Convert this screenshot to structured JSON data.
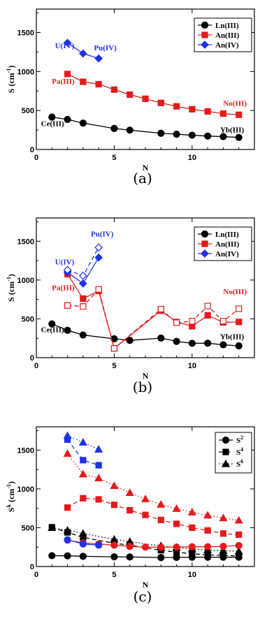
{
  "chart_data": [
    {
      "type": "line",
      "panel_label": "(a)",
      "xlabel": "N",
      "ylabel": "S (cm",
      "ylabel_sup": "-1",
      "ylabel_close": ")",
      "xlim": [
        0,
        14
      ],
      "ylim": [
        0,
        1800
      ],
      "xticks": [
        0,
        5,
        10
      ],
      "yticks": [
        0,
        500,
        1000,
        1500
      ],
      "legend_position": "top-right",
      "series": [
        {
          "name": "Ln(III)",
          "color": "#000000",
          "marker": "circle",
          "filled": true,
          "dash": "solid",
          "x": [
            1,
            2,
            3,
            5,
            6,
            8,
            9,
            10,
            11,
            12,
            13
          ],
          "y": [
            415,
            385,
            338,
            270,
            248,
            208,
            196,
            183,
            172,
            165,
            155
          ]
        },
        {
          "name": "An(III)",
          "color": "#e41a1c",
          "marker": "square",
          "filled": true,
          "dash": "solid",
          "x": [
            2,
            3,
            4,
            5,
            6,
            7,
            8,
            9,
            10,
            11,
            12,
            13
          ],
          "y": [
            968,
            868,
            837,
            768,
            703,
            650,
            597,
            553,
            516,
            488,
            460,
            445
          ]
        },
        {
          "name": "An(IV)",
          "color": "#1f32e6",
          "marker": "diamond",
          "filled": true,
          "dash": "solid",
          "x": [
            2,
            3,
            4
          ],
          "y": [
            1368,
            1230,
            1167
          ]
        }
      ],
      "annotations": [
        {
          "text": "U(IV)",
          "color": "#1f32e6",
          "x": 1.2,
          "y": 1300
        },
        {
          "text": "Pu(IV)",
          "color": "#1f32e6",
          "x": 3.7,
          "y": 1270
        },
        {
          "text": "Pa(III)",
          "color": "#e41a1c",
          "x": 1.0,
          "y": 840
        },
        {
          "text": "Ce(III)",
          "color": "#000000",
          "x": 0.3,
          "y": 300
        },
        {
          "text": "No(III)",
          "color": "#e41a1c",
          "x": 12.0,
          "y": 560
        },
        {
          "text": "Yb(III)",
          "color": "#000000",
          "x": 11.8,
          "y": 220
        }
      ]
    },
    {
      "type": "line",
      "panel_label": "(b)",
      "xlabel": "N",
      "ylabel": "S (cm",
      "ylabel_sup": "-1",
      "ylabel_close": ")",
      "xlim": [
        0,
        14
      ],
      "ylim": [
        0,
        1800
      ],
      "xticks": [
        0,
        5,
        10
      ],
      "yticks": [
        0,
        500,
        1000,
        1500
      ],
      "legend_position": "top-right",
      "series": [
        {
          "name": "Ln(III)",
          "color": "#000000",
          "marker": "circle",
          "filled": true,
          "dash": "solid",
          "x": [
            1,
            2,
            3,
            5,
            6,
            8,
            9,
            10,
            11,
            12,
            13
          ],
          "y": [
            435,
            352,
            292,
            243,
            222,
            252,
            210,
            185,
            186,
            166,
            152
          ]
        },
        {
          "name": "An(III)",
          "color": "#e41a1c",
          "marker": "square",
          "filled": true,
          "dash": "solid",
          "x": [
            2,
            3,
            4,
            5,
            8,
            9,
            10,
            11,
            12,
            13
          ],
          "y": [
            1075,
            760,
            860,
            120,
            605,
            460,
            405,
            545,
            455,
            460
          ]
        },
        {
          "name": "",
          "color": "#e41a1c",
          "marker": "square",
          "filled": false,
          "dash": "dashed",
          "x": [
            2,
            3,
            4,
            5,
            8,
            9,
            10,
            11,
            12,
            13
          ],
          "y": [
            672,
            660,
            880,
            120,
            625,
            450,
            470,
            665,
            470,
            630
          ]
        },
        {
          "name": "An(IV)",
          "color": "#1f32e6",
          "marker": "diamond",
          "filled": true,
          "dash": "solid",
          "x": [
            2,
            3,
            4
          ],
          "y": [
            1100,
            955,
            1290
          ]
        },
        {
          "name": "",
          "color": "#1f32e6",
          "marker": "diamond",
          "filled": false,
          "dash": "dashed",
          "x": [
            2,
            3,
            4
          ],
          "y": [
            1130,
            1055,
            1420
          ]
        }
      ],
      "annotations": [
        {
          "text": "Pu(IV)",
          "color": "#1f32e6",
          "x": 3.5,
          "y": 1560
        },
        {
          "text": "U(IV)",
          "color": "#1f32e6",
          "x": 1.2,
          "y": 1200
        },
        {
          "text": "Pa(III)",
          "color": "#e41a1c",
          "x": 1.0,
          "y": 870
        },
        {
          "text": "Ce(III)",
          "color": "#000000",
          "x": 0.3,
          "y": 330
        },
        {
          "text": "No(III)",
          "color": "#e41a1c",
          "x": 12.0,
          "y": 820
        },
        {
          "text": "Yb(III)",
          "color": "#000000",
          "x": 11.8,
          "y": 240
        }
      ]
    },
    {
      "type": "line",
      "panel_label": "(c)",
      "xlabel": "N",
      "ylabel": "S",
      "ylabel_sup": "k",
      "ylabel_rest": " (cm",
      "ylabel_sup2": "-1",
      "ylabel_close": ")",
      "xlim": [
        0,
        14
      ],
      "ylim": [
        0,
        1800
      ],
      "xticks": [
        0,
        5,
        10
      ],
      "yticks": [
        0,
        500,
        1000,
        1500
      ],
      "legend_position": "top-right",
      "legend": [
        {
          "label": "S",
          "sup": "2",
          "marker": "circle",
          "dash": "solid"
        },
        {
          "label": "S",
          "sup": "4",
          "marker": "square",
          "dash": "dashed"
        },
        {
          "label": "S",
          "sup": "6",
          "marker": "triangle",
          "dash": "dotted"
        }
      ],
      "series": [
        {
          "name": "",
          "color": "#000000",
          "marker": "circle",
          "filled": true,
          "dash": "solid",
          "x": [
            1,
            2,
            3,
            5,
            6,
            8,
            9,
            10,
            11,
            12,
            13
          ],
          "y": [
            140,
            138,
            132,
            125,
            123,
            116,
            118,
            120,
            120,
            120,
            120
          ]
        },
        {
          "name": "",
          "color": "#000000",
          "marker": "square",
          "filled": true,
          "dash": "dashed",
          "x": [
            1,
            2,
            3,
            5,
            6,
            8,
            9,
            10,
            11,
            12,
            13
          ],
          "y": [
            505,
            440,
            375,
            300,
            275,
            210,
            185,
            165,
            150,
            145,
            135
          ]
        },
        {
          "name": "",
          "color": "#000000",
          "marker": "triangle",
          "filled": true,
          "dash": "dotted",
          "x": [
            1,
            2,
            3,
            5,
            6,
            8,
            9,
            10,
            11,
            12,
            13
          ],
          "y": [
            500,
            465,
            425,
            350,
            320,
            265,
            245,
            225,
            215,
            205,
            195
          ]
        },
        {
          "name": "",
          "color": "#e41a1c",
          "marker": "circle",
          "filled": true,
          "dash": "solid",
          "x": [
            2,
            3,
            4,
            5,
            6,
            7,
            8,
            9,
            10,
            11,
            12,
            13
          ],
          "y": [
            340,
            305,
            290,
            275,
            260,
            250,
            250,
            250,
            255,
            255,
            260,
            270
          ]
        },
        {
          "name": "",
          "color": "#e41a1c",
          "marker": "square",
          "filled": true,
          "dash": "dashed",
          "x": [
            2,
            3,
            4,
            5,
            6,
            7,
            8,
            9,
            10,
            11,
            12,
            13
          ],
          "y": [
            760,
            880,
            865,
            795,
            725,
            665,
            600,
            550,
            500,
            465,
            425,
            410
          ]
        },
        {
          "name": "",
          "color": "#e41a1c",
          "marker": "triangle",
          "filled": true,
          "dash": "dotted",
          "x": [
            2,
            3,
            4,
            5,
            6,
            7,
            8,
            9,
            10,
            11,
            12,
            13
          ],
          "y": [
            1455,
            1190,
            1140,
            1040,
            950,
            870,
            800,
            745,
            700,
            660,
            625,
            595
          ]
        },
        {
          "name": "",
          "color": "#1f32e6",
          "marker": "circle",
          "filled": true,
          "dash": "solid",
          "x": [
            2,
            3,
            4
          ],
          "y": [
            345,
            290,
            275
          ]
        },
        {
          "name": "",
          "color": "#1f32e6",
          "marker": "square",
          "filled": true,
          "dash": "dashed",
          "x": [
            2,
            3,
            4
          ],
          "y": [
            1635,
            1370,
            1305
          ]
        },
        {
          "name": "",
          "color": "#1f32e6",
          "marker": "triangle",
          "filled": true,
          "dash": "dotted",
          "x": [
            2,
            3,
            4
          ],
          "y": [
            1685,
            1600,
            1510
          ]
        }
      ],
      "annotations": []
    }
  ]
}
